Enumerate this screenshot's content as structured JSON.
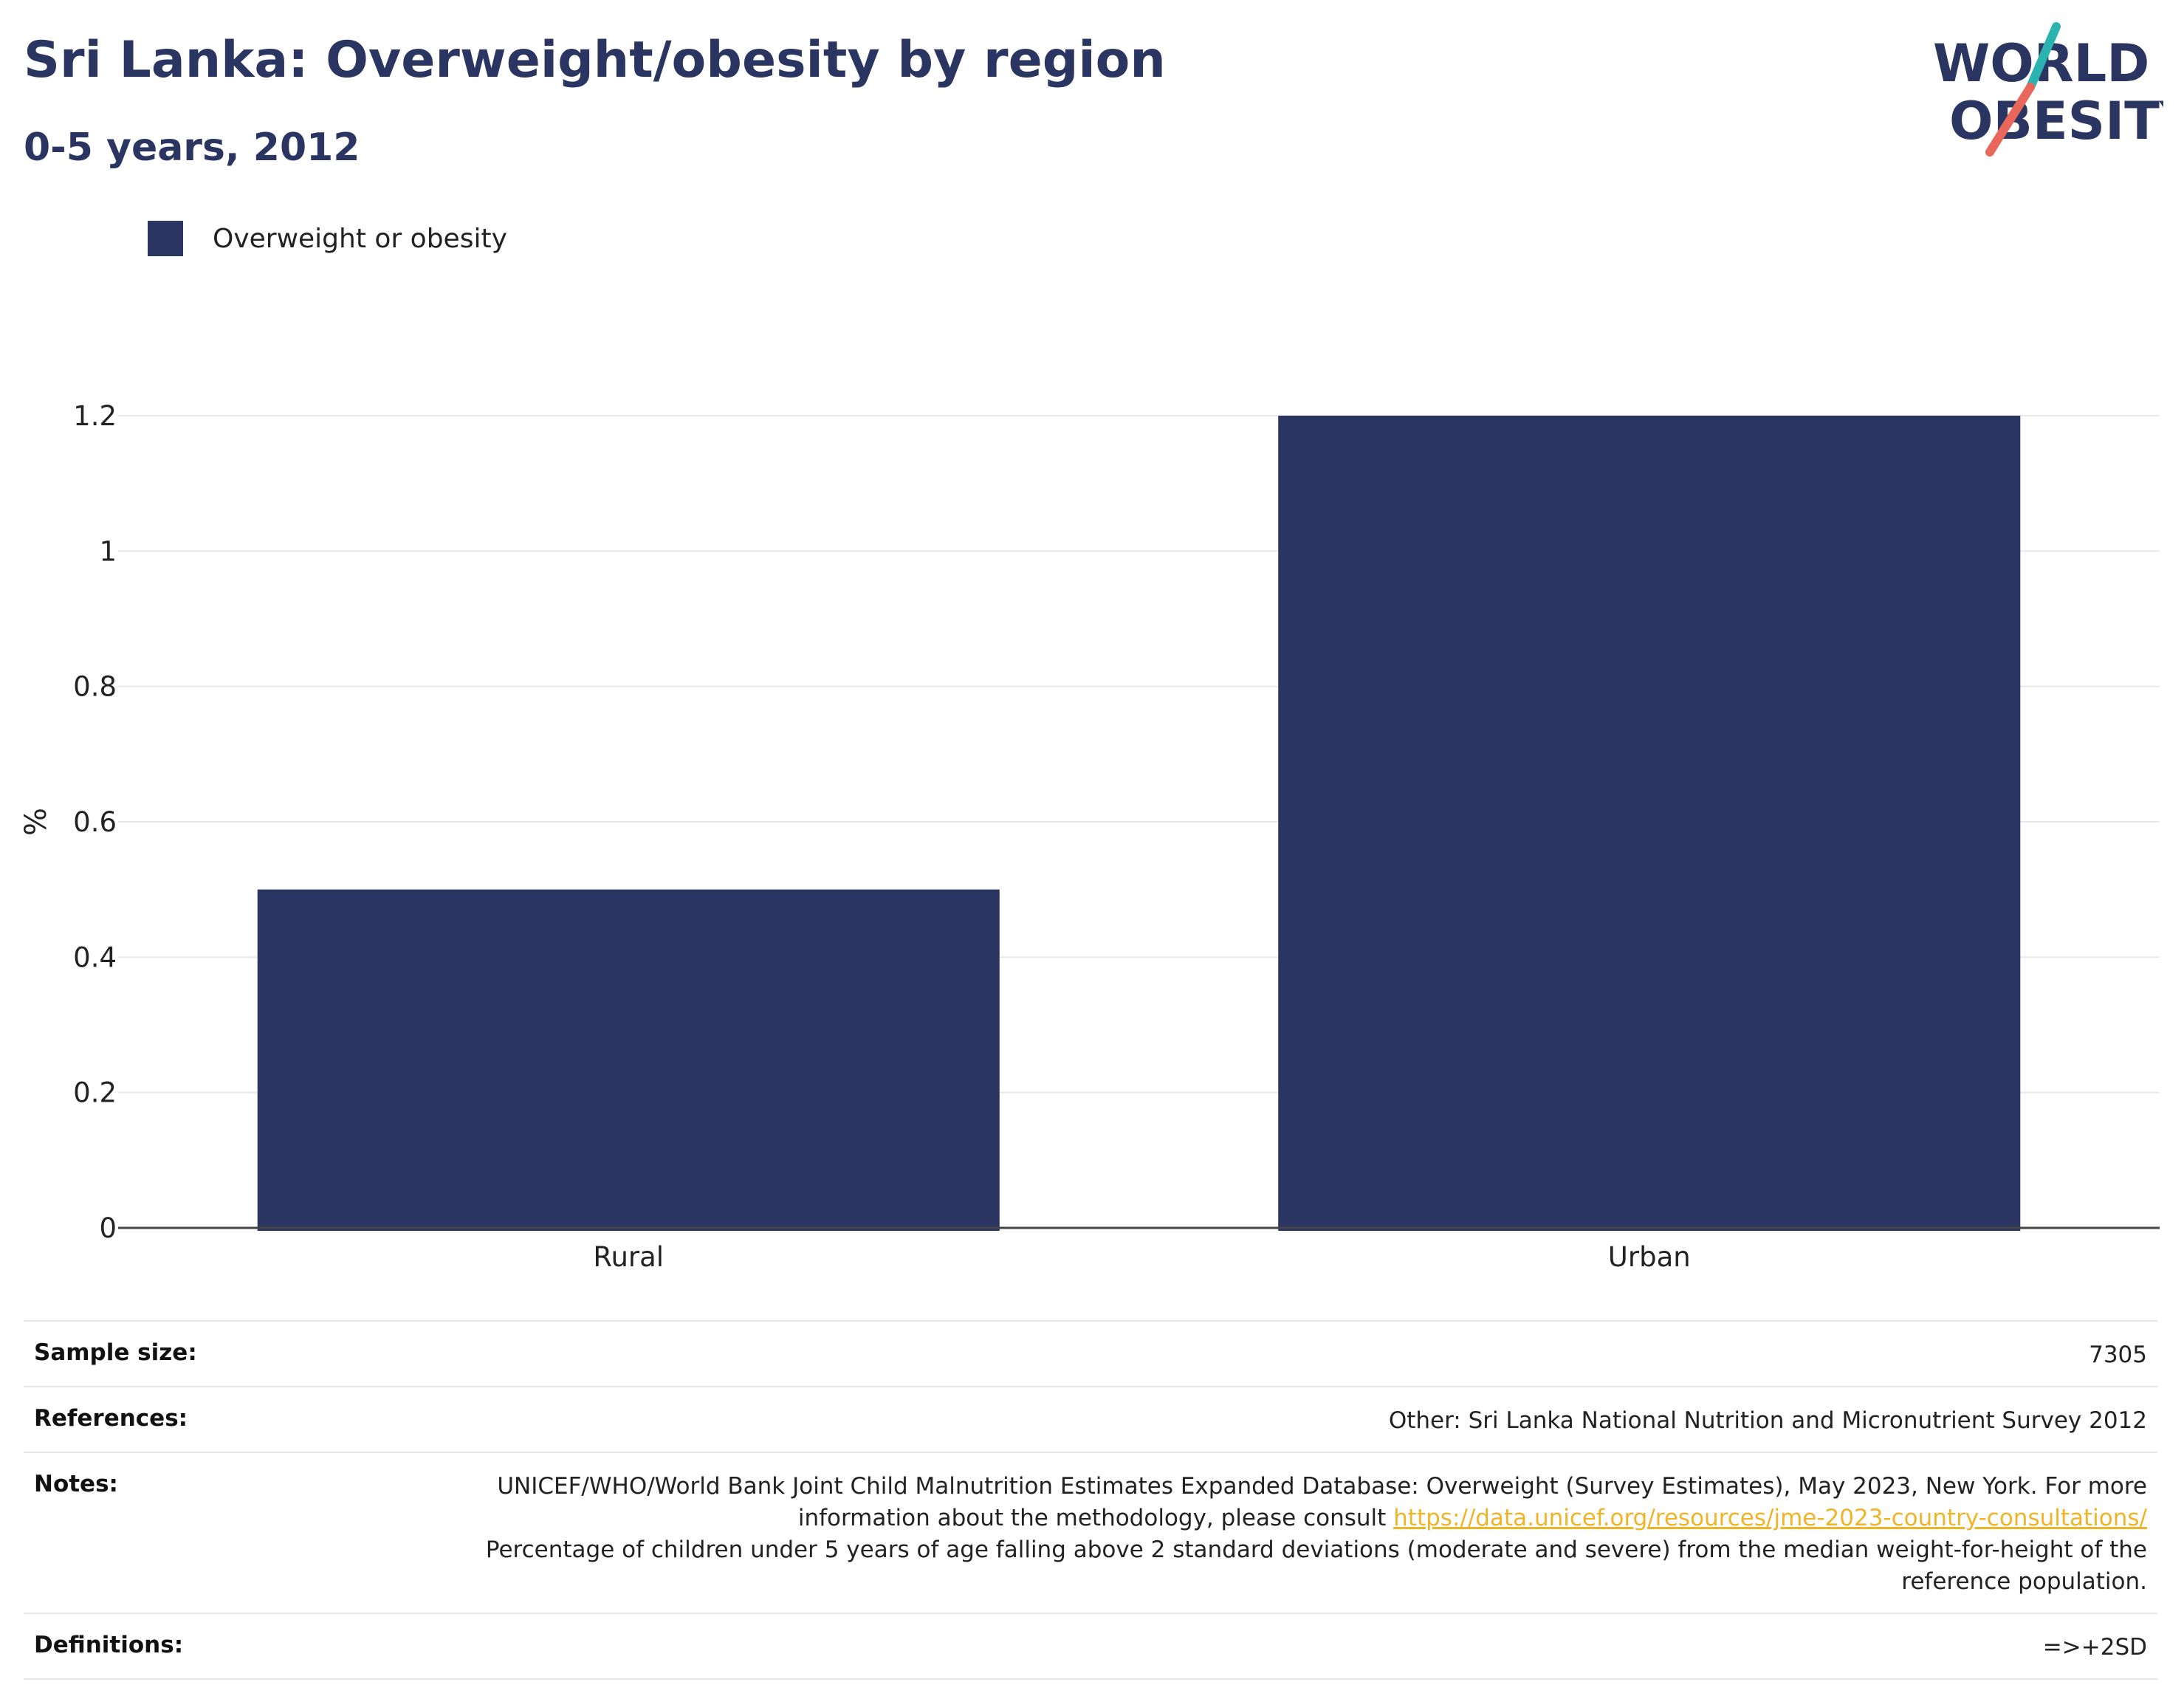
{
  "header": {
    "title": "Sri Lanka: Overweight/obesity by region",
    "subtitle": "0-5 years, 2012",
    "logo_line1": "WORLD",
    "logo_line2": "OBESITY"
  },
  "colors": {
    "bar": "#2a3661",
    "logo_teal": "#2bb3b1",
    "logo_coral": "#e8675a"
  },
  "chart_data": {
    "type": "bar",
    "categories": [
      "Rural",
      "Urban"
    ],
    "series": [
      {
        "name": "Overweight or obesity",
        "values": [
          0.5,
          1.2
        ]
      }
    ],
    "xlabel": "",
    "ylabel": "%",
    "ylim": [
      0,
      1.2
    ],
    "yticks": [
      "0",
      "0.2",
      "0.4",
      "0.6",
      "0.8",
      "1",
      "1.2"
    ],
    "grid": true,
    "legend": "top-left"
  },
  "info": {
    "sample_size_label": "Sample size:",
    "sample_size_value": "7305",
    "references_label": "References:",
    "references_value": "Other: Sri Lanka National Nutrition and Micronutrient Survey 2012",
    "notes_label": "Notes:",
    "notes_text_1": "UNICEF/WHO/World Bank Joint Child Malnutrition Estimates Expanded Database: Overweight (Survey Estimates), May 2023, New York. For more information about the methodology, please consult ",
    "notes_link": "https://data.unicef.org/resources/jme-2023-country-consultations/",
    "notes_text_2": "Percentage of children under 5 years of age falling above 2 standard deviations (moderate and severe) from the median weight-for-height of the reference population.",
    "definitions_label": "Definitions:",
    "definitions_value": "=>+2SD"
  }
}
